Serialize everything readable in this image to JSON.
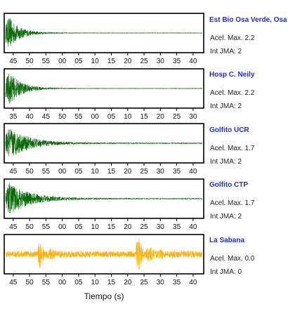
{
  "x_axis_label": "Tiempo (s)",
  "colors": {
    "trace_default": "#0b6b0b",
    "trace_highlight": "#ffb000",
    "station_name": "#1f2fd6"
  },
  "chart_data": {
    "type": "line",
    "xlabel": "Tiempo (s)",
    "ylabel": "",
    "grid": false,
    "panels": [
      {
        "station": "Est Bio Osa Verde, Osa",
        "accel_label": "Acel. Max. 2.2",
        "jma_label": "Int JMA: 2",
        "trace_color": "#0b6b0b",
        "tick_labels": [
          "45",
          "50",
          "55",
          "00",
          "05",
          "10",
          "15",
          "20",
          "25",
          "30",
          "35",
          "40"
        ],
        "waveform": {
          "onset_s": 0.0,
          "peak_amplitude": 0.95,
          "decay_s": 7,
          "base_amplitude": 0.01
        }
      },
      {
        "station": "Hosp C. Neily",
        "accel_label": "Acel. Max. 2.2",
        "jma_label": "Int JMA: 2",
        "trace_color": "#0b6b0b",
        "tick_labels": [
          "35",
          "40",
          "45",
          "50",
          "55",
          "00",
          "05",
          "10",
          "15",
          "20",
          "25",
          "30"
        ],
        "waveform": {
          "onset_s": 0.0,
          "peak_amplitude": 0.95,
          "decay_s": 8,
          "base_amplitude": 0.01
        }
      },
      {
        "station": "Golfito UCR",
        "accel_label": "Acel. Max. 1.7",
        "jma_label": "Int JMA: 2",
        "trace_color": "#0b6b0b",
        "tick_labels": [
          "45",
          "50",
          "55",
          "00",
          "05",
          "10",
          "15",
          "20",
          "25",
          "30",
          "35",
          "40"
        ],
        "waveform": {
          "onset_s": 0.0,
          "peak_amplitude": 0.9,
          "decay_s": 13,
          "base_amplitude": 0.02
        }
      },
      {
        "station": "Golfito CTP",
        "accel_label": "Acel. Max. 1.7",
        "jma_label": "Int JMA: 2",
        "trace_color": "#0b6b0b",
        "tick_labels": [
          "45",
          "50",
          "55",
          "00",
          "05",
          "10",
          "15",
          "20",
          "25",
          "30",
          "35",
          "40"
        ],
        "waveform": {
          "onset_s": 0.0,
          "peak_amplitude": 0.9,
          "decay_s": 14,
          "base_amplitude": 0.02
        }
      },
      {
        "station": "La Sabana",
        "accel_label": "Acel. Max. 0.0",
        "jma_label": "Int JMA: 0",
        "trace_color": "#ffb000",
        "tick_labels": [
          "45",
          "50",
          "55",
          "00",
          "05",
          "10",
          "15",
          "20",
          "25",
          "30",
          "35",
          "40"
        ],
        "waveform": {
          "noise_amplitude": 0.18,
          "bursts": [
            {
              "start_s": 20,
              "amplitude": 0.85,
              "decay_s": 5
            },
            {
              "start_s": 81,
              "amplitude": 0.9,
              "decay_s": 8
            }
          ]
        }
      }
    ]
  }
}
